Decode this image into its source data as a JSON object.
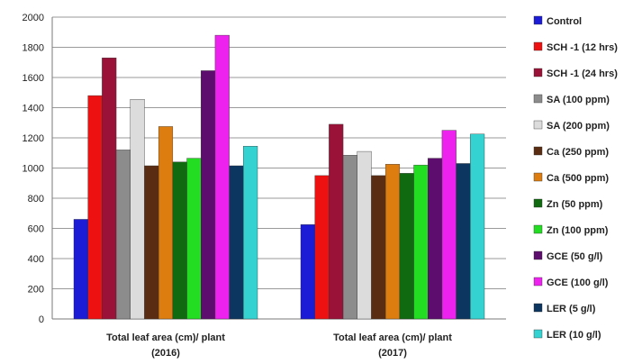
{
  "chart_data": {
    "type": "bar",
    "title": "",
    "xlabel": "",
    "ylabel": "",
    "ylim": [
      0,
      2000
    ],
    "yticks": [
      0,
      200,
      400,
      600,
      800,
      1000,
      1200,
      1400,
      1600,
      1800,
      2000
    ],
    "grid": true,
    "legend_position": "right",
    "categories": [
      [
        "Total leaf area (cm)/ plant",
        "(2016)"
      ],
      [
        "Total leaf area (cm)/ plant",
        "(2017)"
      ]
    ],
    "series": [
      {
        "name": "Control",
        "color": "#1c1cd6",
        "values": [
          660,
          625
        ]
      },
      {
        "name": "SCH -1 (12 hrs)",
        "color": "#ee1111",
        "values": [
          1480,
          950
        ]
      },
      {
        "name": "SCH -1 (24 hrs)",
        "color": "#9b1238",
        "values": [
          1730,
          1290
        ]
      },
      {
        "name": "SA (100 ppm)",
        "color": "#8c8c8c",
        "values": [
          1120,
          1085
        ]
      },
      {
        "name": "SA (200 ppm)",
        "color": "#dcdcdc",
        "values": [
          1455,
          1110
        ]
      },
      {
        "name": "Ca (250 ppm)",
        "color": "#5a2c12",
        "values": [
          1015,
          950
        ]
      },
      {
        "name": "Ca (500 ppm)",
        "color": "#dd7d10",
        "values": [
          1275,
          1025
        ]
      },
      {
        "name": "Zn (50 ppm)",
        "color": "#0f6a10",
        "values": [
          1040,
          965
        ]
      },
      {
        "name": "Zn (100 ppm)",
        "color": "#22dd22",
        "values": [
          1065,
          1020
        ]
      },
      {
        "name": "GCE (50 g/l)",
        "color": "#5c0d6e",
        "values": [
          1645,
          1065
        ]
      },
      {
        "name": "GCE (100 g/l)",
        "color": "#ee22ee",
        "values": [
          1880,
          1250
        ]
      },
      {
        "name": "LER (5 g/l)",
        "color": "#0c3560",
        "values": [
          1015,
          1030
        ]
      },
      {
        "name": "LER (10 g/l)",
        "color": "#35d2d2",
        "values": [
          1145,
          1225
        ]
      }
    ]
  }
}
